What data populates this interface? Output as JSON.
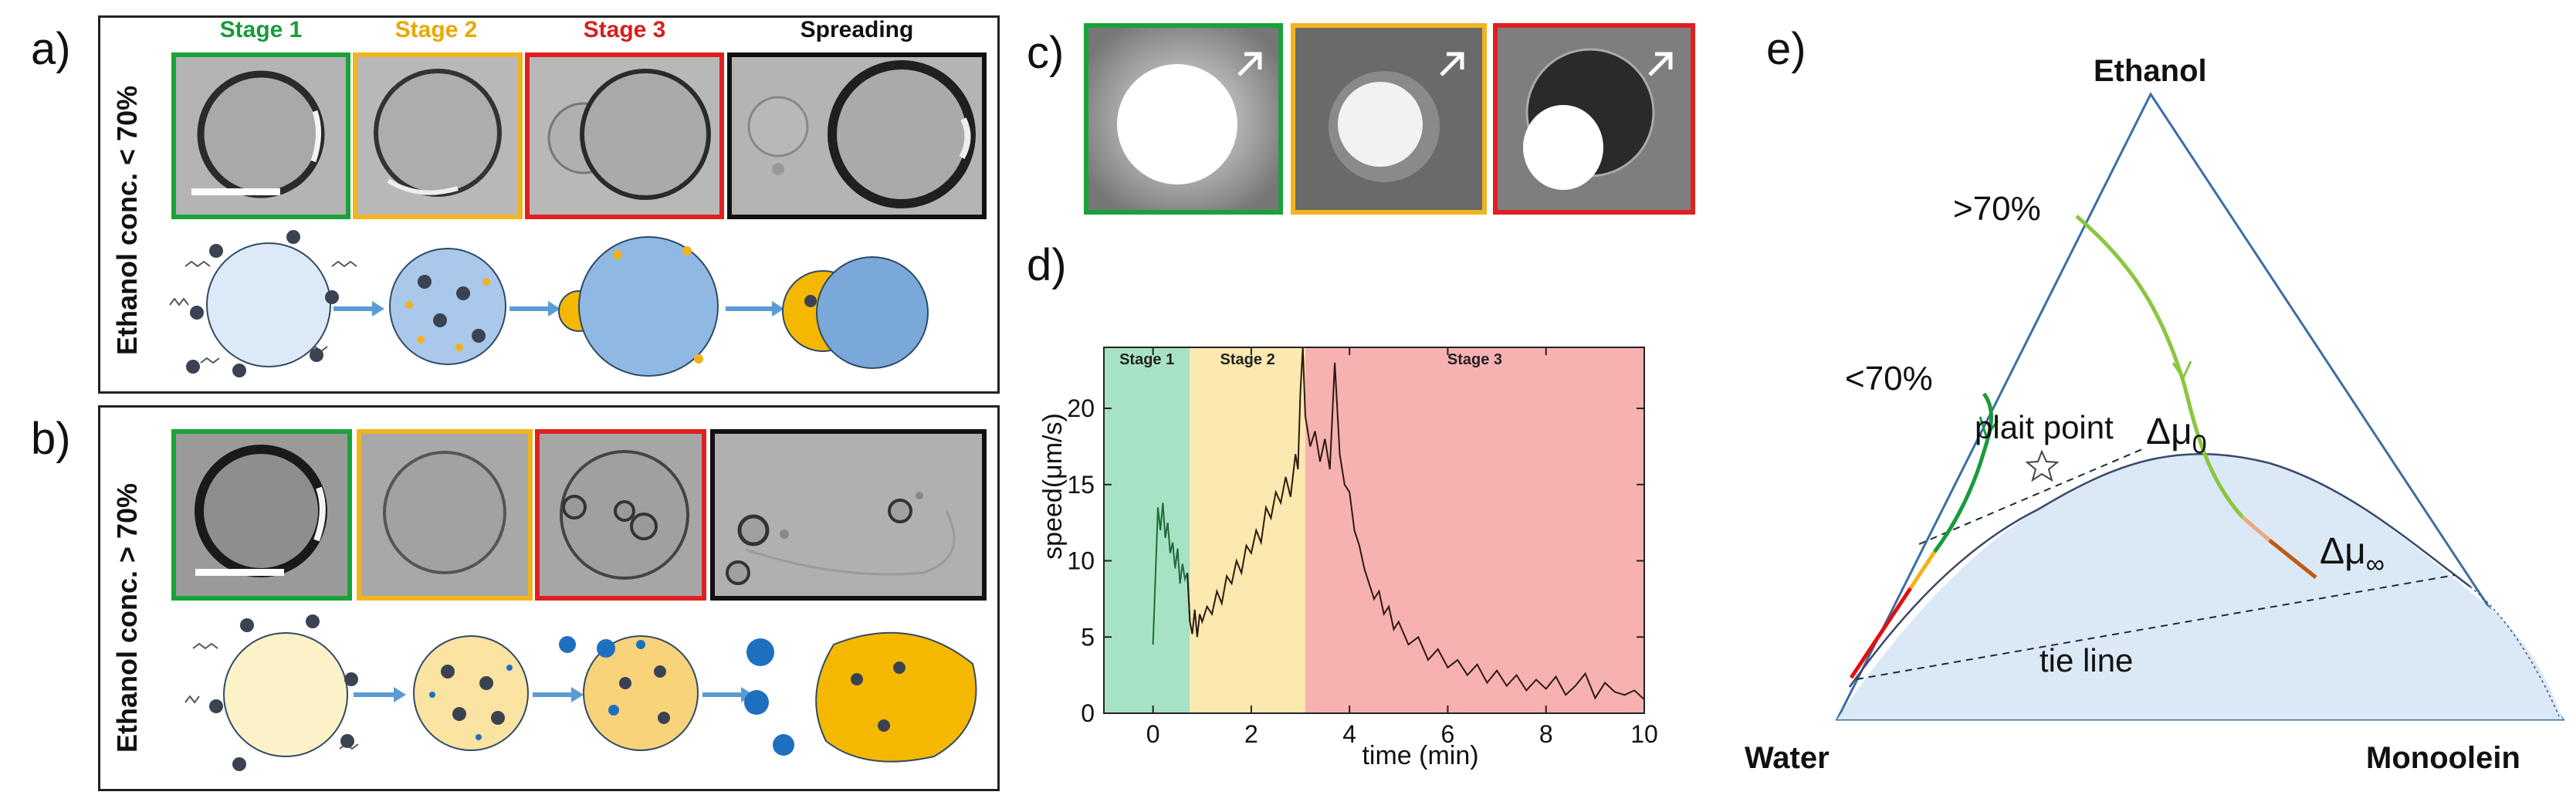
{
  "panels": {
    "a": {
      "label": "a)",
      "side_label": "Ethanol conc. < 70%",
      "stages": [
        "Stage 1",
        "Stage 2",
        "Stage 3",
        "Spreading"
      ],
      "stage_colors": [
        "#1a9a3a",
        "#f2b21a",
        "#e02020",
        "#111111"
      ]
    },
    "b": {
      "label": "b)",
      "side_label": "Ethanol conc. > 70%"
    },
    "c": {
      "label": "c)"
    },
    "d": {
      "label": "d)"
    },
    "e": {
      "label": "e)",
      "vertices": {
        "top": "Ethanol",
        "left": "Water",
        "right": "Monoolein"
      },
      "annotations": {
        "above70": ">70%",
        "below70": "<70%",
        "plait": "plait point",
        "mu0": "Δμ",
        "mu0_sub": "0",
        "muinf": "Δμ",
        "muinf_sub": "∞",
        "tie": "tie line"
      }
    }
  },
  "chart_data": {
    "type": "line",
    "xlabel": "time (min)",
    "ylabel": "speed(μm/s)",
    "xlim": [
      -1,
      10
    ],
    "ylim": [
      0,
      24
    ],
    "xticks": [
      0,
      2,
      4,
      6,
      8,
      10
    ],
    "yticks": [
      0,
      5,
      10,
      15,
      20
    ],
    "regions": [
      {
        "name": "Stage 1",
        "x0": -1,
        "x1": 0.75,
        "color": "#a8e2c4"
      },
      {
        "name": "Stage 2",
        "x0": 0.75,
        "x1": 3.1,
        "color": "#fbe9b0"
      },
      {
        "name": "Stage 3",
        "x0": 3.1,
        "x1": 10,
        "color": "#f8b1b1"
      }
    ],
    "series": [
      {
        "color_stage1": "#1f6b3a",
        "color_rest": "#2a1a10",
        "x": [
          0,
          0.05,
          0.1,
          0.15,
          0.2,
          0.25,
          0.3,
          0.35,
          0.4,
          0.45,
          0.5,
          0.55,
          0.6,
          0.65,
          0.7,
          0.75,
          0.8,
          0.85,
          0.9,
          0.95,
          1.0,
          1.1,
          1.2,
          1.3,
          1.4,
          1.5,
          1.6,
          1.7,
          1.8,
          1.9,
          2.0,
          2.1,
          2.2,
          2.3,
          2.4,
          2.5,
          2.6,
          2.7,
          2.8,
          2.9,
          2.95,
          3.0,
          3.05,
          3.1,
          3.2,
          3.3,
          3.4,
          3.5,
          3.6,
          3.7,
          3.8,
          3.9,
          4.0,
          4.1,
          4.2,
          4.3,
          4.4,
          4.5,
          4.6,
          4.7,
          4.8,
          4.9,
          5.0,
          5.2,
          5.4,
          5.6,
          5.8,
          6.0,
          6.2,
          6.4,
          6.6,
          6.8,
          7.0,
          7.2,
          7.4,
          7.6,
          7.8,
          8.0,
          8.2,
          8.4,
          8.6,
          8.8,
          9.0,
          9.2,
          9.4,
          9.6,
          9.8,
          10.0
        ],
        "y": [
          4.5,
          9,
          13.5,
          12,
          13.8,
          11.5,
          12.5,
          10.5,
          11.2,
          9.5,
          10.8,
          8.5,
          9.8,
          8.8,
          9.2,
          6.0,
          5.2,
          6.8,
          5.0,
          6.5,
          6.0,
          7.0,
          6.5,
          8.0,
          7.2,
          9.0,
          8.5,
          10.0,
          9.2,
          11.0,
          10.5,
          12.0,
          11.2,
          13.5,
          12.8,
          14.5,
          13.8,
          15.5,
          14.2,
          17.0,
          16.0,
          21.0,
          24.0,
          19.5,
          17.5,
          18.5,
          16.5,
          18.0,
          16.0,
          23.0,
          17.0,
          15.0,
          14.5,
          12.0,
          11.0,
          9.5,
          8.5,
          7.5,
          8.0,
          6.5,
          7.0,
          5.5,
          6.0,
          4.5,
          5.0,
          3.5,
          4.2,
          3.0,
          3.5,
          2.5,
          3.2,
          2.0,
          2.8,
          1.8,
          2.5,
          1.5,
          2.2,
          1.6,
          2.4,
          1.2,
          1.8,
          2.6,
          1.0,
          2.0,
          1.4,
          1.2,
          1.5,
          0.9
        ]
      }
    ]
  }
}
